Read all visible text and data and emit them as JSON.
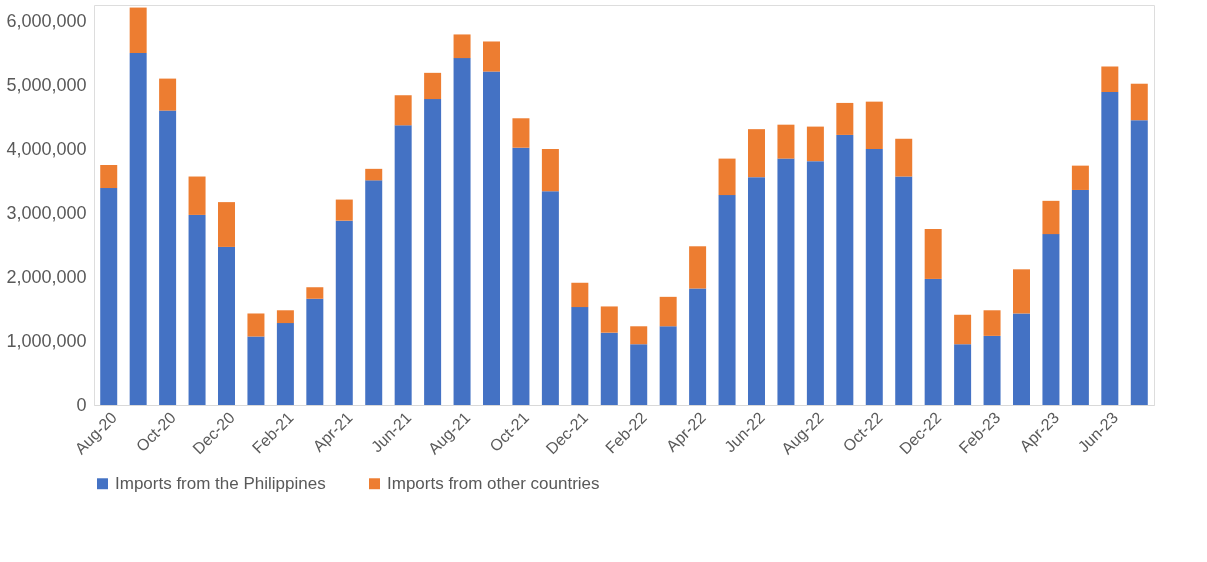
{
  "chart_data": {
    "type": "bar",
    "stacked": true,
    "categories": [
      "Aug-20",
      null,
      "Oct-20",
      null,
      "Dec-20",
      null,
      "Feb-21",
      null,
      "Apr-21",
      null,
      "Jun-21",
      null,
      "Aug-21",
      null,
      "Oct-21",
      null,
      "Dec-21",
      null,
      "Feb-22",
      null,
      "Apr-22",
      null,
      "Jun-22",
      null,
      "Aug-22",
      null,
      "Oct-22",
      null,
      "Dec-22",
      null,
      "Feb-23",
      null,
      "Apr-23",
      null,
      "Jun-23",
      null
    ],
    "series": [
      {
        "name": "Imports from the Philippines",
        "color": "#4472c4",
        "values": [
          3390000,
          5500000,
          4600000,
          2970000,
          2470000,
          1070000,
          1280000,
          1660000,
          2880000,
          3510000,
          4370000,
          4780000,
          5420000,
          5210000,
          4020000,
          3340000,
          1530000,
          1130000,
          950000,
          1230000,
          1820000,
          3280000,
          3560000,
          3850000,
          3810000,
          4220000,
          4000000,
          3570000,
          1970000,
          950000,
          1080000,
          1430000,
          2670000,
          3360000,
          4890000,
          4450000
        ]
      },
      {
        "name": "Imports from other countries",
        "color": "#ed7d31",
        "values": [
          360000,
          710000,
          500000,
          600000,
          700000,
          360000,
          200000,
          180000,
          330000,
          180000,
          470000,
          410000,
          370000,
          470000,
          460000,
          660000,
          380000,
          410000,
          280000,
          460000,
          660000,
          570000,
          750000,
          530000,
          540000,
          500000,
          740000,
          590000,
          780000,
          460000,
          400000,
          690000,
          520000,
          380000,
          400000,
          570000
        ]
      }
    ],
    "ylim": [
      0,
      6250000
    ],
    "yticks": [
      {
        "value": 0,
        "label": "0"
      },
      {
        "value": 1000000,
        "label": "1,000,000"
      },
      {
        "value": 2000000,
        "label": "2,000,000"
      },
      {
        "value": 3000000,
        "label": "3,000,000"
      },
      {
        "value": 4000000,
        "label": "4,000,000"
      },
      {
        "value": 5000000,
        "label": "5,000,000"
      },
      {
        "value": 6000000,
        "label": "6,000,000"
      }
    ],
    "grid": false,
    "legend": "bottom"
  }
}
